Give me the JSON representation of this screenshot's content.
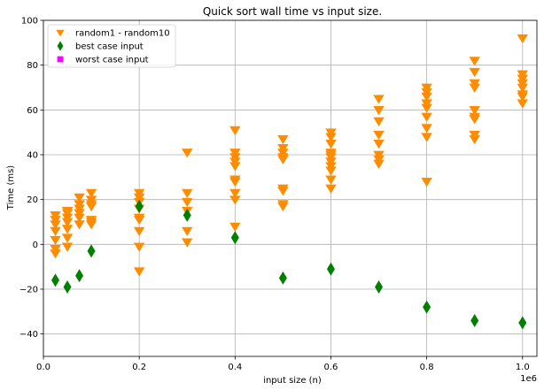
{
  "chart_data": {
    "type": "scatter",
    "title": "Quick sort wall time vs input size.",
    "xlabel": "input size (n)",
    "ylabel": "Time (ms)",
    "x_offset_label": "1e6",
    "xlim": [
      0,
      1.03
    ],
    "ylim": [
      -50,
      100
    ],
    "xticks": [
      0.0,
      0.2,
      0.4,
      0.6,
      0.8,
      1.0
    ],
    "xtick_labels": [
      "0.0",
      "0.2",
      "0.4",
      "0.6",
      "0.8",
      "1.0"
    ],
    "yticks": [
      -40,
      -20,
      0,
      20,
      40,
      60,
      80,
      100
    ],
    "ytick_labels": [
      "−40",
      "−20",
      "0",
      "20",
      "40",
      "60",
      "80",
      "100"
    ],
    "grid": true,
    "legend_position": "top-left",
    "series": [
      {
        "name": "random1 - random10",
        "marker": "triangle-down",
        "color": "#ff8c00",
        "points": [
          [
            0.025,
            -4
          ],
          [
            0.025,
            -2
          ],
          [
            0.025,
            2
          ],
          [
            0.025,
            6
          ],
          [
            0.025,
            9
          ],
          [
            0.025,
            11
          ],
          [
            0.025,
            13
          ],
          [
            0.05,
            -1
          ],
          [
            0.05,
            3
          ],
          [
            0.05,
            7
          ],
          [
            0.05,
            10
          ],
          [
            0.05,
            12
          ],
          [
            0.05,
            14
          ],
          [
            0.05,
            15
          ],
          [
            0.075,
            9
          ],
          [
            0.075,
            12
          ],
          [
            0.075,
            14
          ],
          [
            0.075,
            16
          ],
          [
            0.075,
            18
          ],
          [
            0.075,
            21
          ],
          [
            0.1,
            9
          ],
          [
            0.1,
            10
          ],
          [
            0.1,
            11
          ],
          [
            0.1,
            17
          ],
          [
            0.1,
            18
          ],
          [
            0.1,
            20
          ],
          [
            0.1,
            23
          ],
          [
            0.2,
            -12
          ],
          [
            0.2,
            -1
          ],
          [
            0.2,
            6
          ],
          [
            0.2,
            11
          ],
          [
            0.2,
            12
          ],
          [
            0.2,
            16
          ],
          [
            0.2,
            19
          ],
          [
            0.2,
            21
          ],
          [
            0.2,
            23
          ],
          [
            0.3,
            1
          ],
          [
            0.3,
            6
          ],
          [
            0.3,
            15
          ],
          [
            0.3,
            19
          ],
          [
            0.3,
            23
          ],
          [
            0.3,
            41
          ],
          [
            0.4,
            8
          ],
          [
            0.4,
            20
          ],
          [
            0.4,
            23
          ],
          [
            0.4,
            28
          ],
          [
            0.4,
            29
          ],
          [
            0.4,
            35
          ],
          [
            0.4,
            37
          ],
          [
            0.4,
            39
          ],
          [
            0.4,
            41
          ],
          [
            0.4,
            51
          ],
          [
            0.5,
            17
          ],
          [
            0.5,
            18
          ],
          [
            0.5,
            24
          ],
          [
            0.5,
            25
          ],
          [
            0.5,
            38
          ],
          [
            0.5,
            39
          ],
          [
            0.5,
            41
          ],
          [
            0.5,
            43
          ],
          [
            0.5,
            47
          ],
          [
            0.6,
            25
          ],
          [
            0.6,
            29
          ],
          [
            0.6,
            33
          ],
          [
            0.6,
            35
          ],
          [
            0.6,
            37
          ],
          [
            0.6,
            39
          ],
          [
            0.6,
            40
          ],
          [
            0.6,
            41
          ],
          [
            0.6,
            45
          ],
          [
            0.6,
            48
          ],
          [
            0.6,
            50
          ],
          [
            0.7,
            36
          ],
          [
            0.7,
            38
          ],
          [
            0.7,
            40
          ],
          [
            0.7,
            45
          ],
          [
            0.7,
            49
          ],
          [
            0.7,
            55
          ],
          [
            0.7,
            60
          ],
          [
            0.7,
            65
          ],
          [
            0.8,
            28
          ],
          [
            0.8,
            48
          ],
          [
            0.8,
            52
          ],
          [
            0.8,
            57
          ],
          [
            0.8,
            61
          ],
          [
            0.8,
            63
          ],
          [
            0.8,
            66
          ],
          [
            0.8,
            68
          ],
          [
            0.8,
            70
          ],
          [
            0.9,
            47
          ],
          [
            0.9,
            49
          ],
          [
            0.9,
            56
          ],
          [
            0.9,
            57
          ],
          [
            0.9,
            60
          ],
          [
            0.9,
            70
          ],
          [
            0.9,
            72
          ],
          [
            0.9,
            77
          ],
          [
            0.9,
            82
          ],
          [
            1.0,
            63
          ],
          [
            1.0,
            66
          ],
          [
            1.0,
            67
          ],
          [
            1.0,
            70
          ],
          [
            1.0,
            72
          ],
          [
            1.0,
            74
          ],
          [
            1.0,
            76
          ],
          [
            1.0,
            92
          ]
        ]
      },
      {
        "name": "best case input",
        "marker": "diamond",
        "color": "#008000",
        "points": [
          [
            0.025,
            -16
          ],
          [
            0.05,
            -19
          ],
          [
            0.075,
            -14
          ],
          [
            0.1,
            -3
          ],
          [
            0.2,
            17
          ],
          [
            0.3,
            13
          ],
          [
            0.4,
            3
          ],
          [
            0.5,
            -15
          ],
          [
            0.6,
            -11
          ],
          [
            0.7,
            -19
          ],
          [
            0.8,
            -28
          ],
          [
            0.9,
            -34
          ],
          [
            1.0,
            -35
          ]
        ]
      },
      {
        "name": "worst case input",
        "marker": "square",
        "color": "#ff00ff",
        "points": []
      }
    ]
  }
}
